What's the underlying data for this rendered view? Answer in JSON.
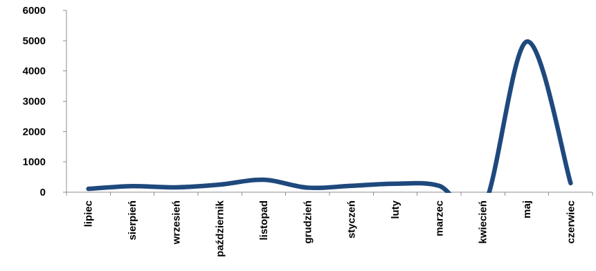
{
  "chart_data": {
    "type": "line",
    "title": "",
    "xlabel": "",
    "ylabel": "",
    "categories": [
      "lipiec",
      "sierpień",
      "wrzesień",
      "październik",
      "listopad",
      "grudzień",
      "styczeń",
      "luty",
      "marzec",
      "kwiecień",
      "maj",
      "czerwiec"
    ],
    "series": [
      {
        "values": [
          110,
          200,
          160,
          250,
          410,
          150,
          210,
          280,
          210,
          -550,
          4970,
          300
        ],
        "color": "#1f497d"
      }
    ],
    "ylim": [
      0,
      6000
    ],
    "yticks": [
      "0",
      "1000",
      "2000",
      "3000",
      "4000",
      "5000",
      "6000"
    ],
    "grid": false,
    "legend": "none",
    "smooth": true
  }
}
